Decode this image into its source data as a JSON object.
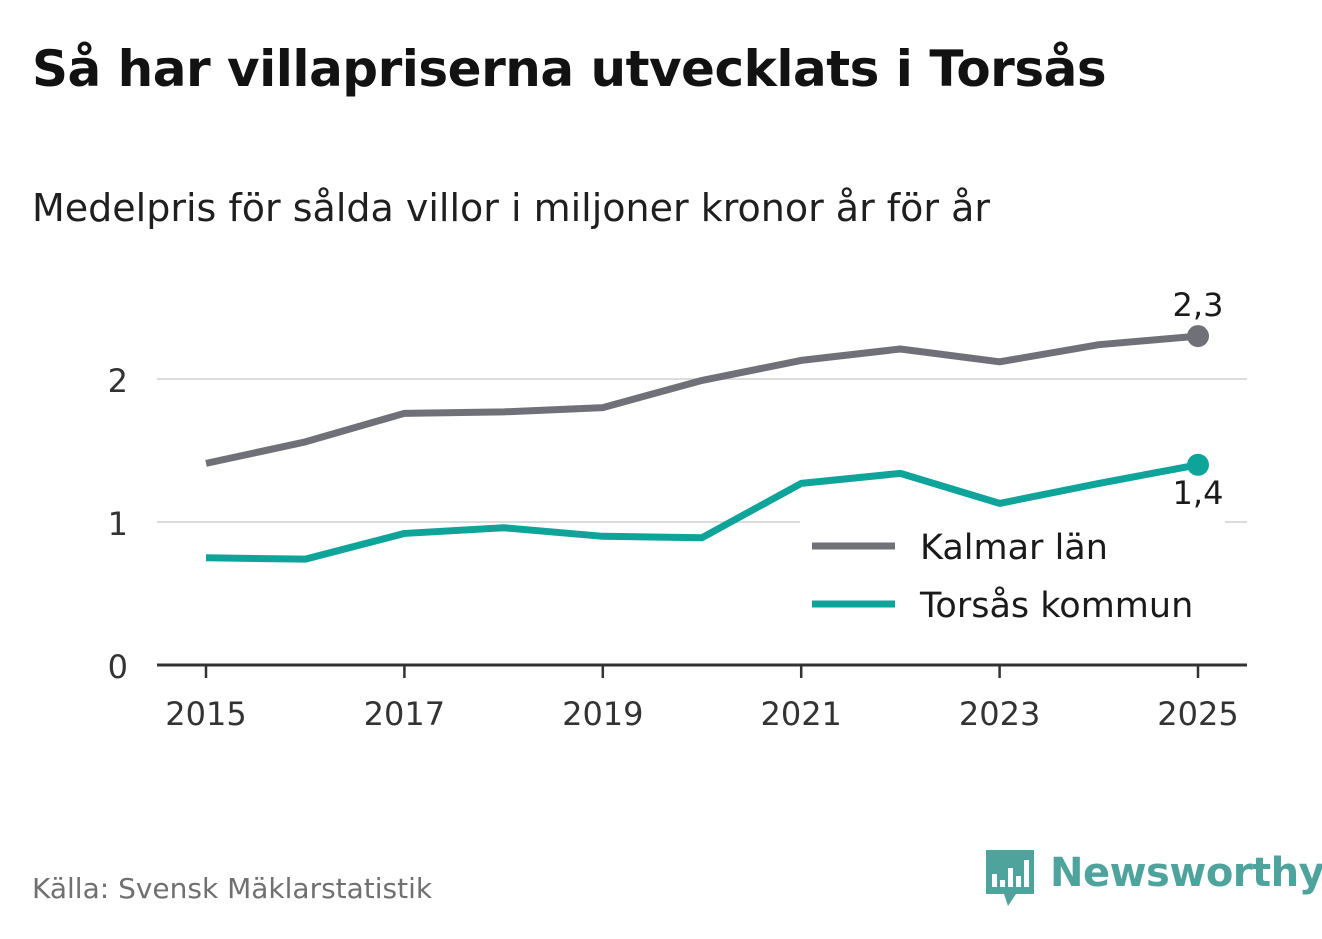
{
  "title": "Så har villapriserna utvecklats i Torsås",
  "subtitle": "Medelpris för sålda villor i miljoner kronor år för år",
  "source": "Källa: Svensk Mäklarstatistik",
  "brand": {
    "name": "Newsworthy",
    "icon": "newsworthy-logo-icon",
    "color": "#4fa39d"
  },
  "chart_data": {
    "type": "line",
    "x": [
      2015,
      2016,
      2017,
      2018,
      2019,
      2020,
      2021,
      2022,
      2023,
      2024,
      2025
    ],
    "x_tick_labels": [
      "2015",
      "2017",
      "2019",
      "2021",
      "2023",
      "2025"
    ],
    "y_tick_labels": [
      "0",
      "1",
      "2"
    ],
    "ylim": [
      0,
      2.5
    ],
    "grid": true,
    "legend_position": "bottom-right",
    "series": [
      {
        "name": "Kalmar län",
        "color": "#707078",
        "values": [
          1.41,
          1.56,
          1.76,
          1.77,
          1.8,
          1.99,
          2.13,
          2.21,
          2.12,
          2.24,
          2.3
        ],
        "end_label": "2,3"
      },
      {
        "name": "Torsås kommun",
        "color": "#0fa49a",
        "values": [
          0.75,
          0.74,
          0.92,
          0.96,
          0.9,
          0.89,
          1.27,
          1.34,
          1.13,
          1.27,
          1.4
        ],
        "end_label": "1,4"
      }
    ]
  }
}
